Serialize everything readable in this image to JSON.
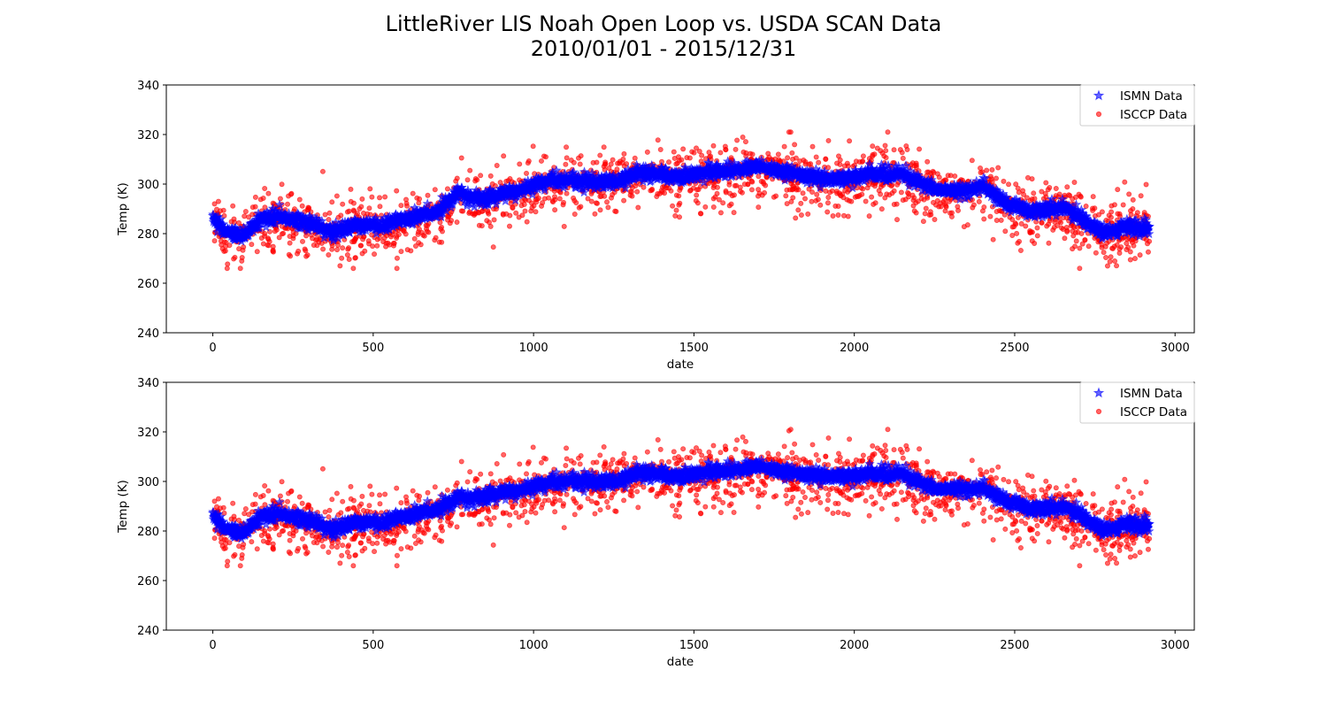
{
  "figure": {
    "title_line1": "LittleRiver LIS Noah Open Loop vs. USDA SCAN Data",
    "title_line2": "2010/01/01 - 2015/12/31"
  },
  "chart_data": [
    {
      "type": "scatter",
      "xlabel": "date",
      "ylabel": "Temp (K)",
      "xlim": [
        -145,
        3060
      ],
      "ylim": [
        240,
        340
      ],
      "xticks": [
        0,
        500,
        1000,
        1500,
        2000,
        2500,
        3000
      ],
      "yticks": [
        240,
        260,
        280,
        300,
        320,
        340
      ],
      "grid": false,
      "legend_position": "top-right",
      "series": [
        {
          "name": "ISMN Data",
          "marker": "star",
          "color": "#0000ff",
          "x_range": [
            0,
            2920
          ],
          "count": 2920,
          "trend_keypoints": {
            "x": [
              0,
              40,
              90,
              150,
              200,
              300,
              380,
              450,
              520,
              600,
              700,
              760,
              850,
              950,
              1050,
              1150,
              1250,
              1340,
              1450,
              1550,
              1650,
              1700,
              1800,
              1900,
              1950,
              2050,
              2150,
              2250,
              2330,
              2400,
              2480,
              2550,
              2650,
              2700,
              2780,
              2850,
              2920
            ],
            "y": [
              286,
              281,
              279,
              286,
              287,
              284,
              281,
              284,
              283,
              286,
              289,
              296,
              294,
              297,
              302,
              301,
              301,
              305,
              303,
              305,
              306,
              307,
              305,
              302,
              302,
              304,
              304,
              298,
              297,
              299,
              292,
              289,
              291,
              287,
              280,
              283,
              282
            ]
          }
        },
        {
          "name": "ISCCP Data",
          "marker": "circle",
          "color": "#ff0000",
          "x_range": [
            0,
            2920
          ],
          "count": 2000,
          "relation": "scattered around ISMN trend with spread about 6 K, extremes from 266 to 321"
        }
      ]
    },
    {
      "type": "scatter",
      "xlabel": "date",
      "ylabel": "Temp (K)",
      "xlim": [
        -145,
        3060
      ],
      "ylim": [
        240,
        340
      ],
      "xticks": [
        0,
        500,
        1000,
        1500,
        2000,
        2500,
        3000
      ],
      "yticks": [
        240,
        260,
        280,
        300,
        320,
        340
      ],
      "grid": false,
      "legend_position": "top-right",
      "series": [
        {
          "name": "ISMN Data",
          "marker": "star",
          "color": "#0000ff",
          "x_range": [
            0,
            2920
          ],
          "count": 2920,
          "trend_keypoints": {
            "x": [
              0,
              40,
              90,
              150,
              200,
              300,
              380,
              450,
              520,
              600,
              700,
              760,
              850,
              950,
              1050,
              1150,
              1250,
              1340,
              1450,
              1550,
              1650,
              1700,
              1800,
              1900,
              1950,
              2050,
              2150,
              2250,
              2330,
              2400,
              2480,
              2550,
              2650,
              2700,
              2780,
              2850,
              2920
            ],
            "y": [
              286,
              281,
              279,
              286,
              287,
              284,
              281,
              284,
              283,
              286,
              289,
              293,
              294,
              296,
              300,
              300,
              300,
              304,
              302,
              304,
              305,
              306,
              304,
              302,
              302,
              303,
              303,
              297,
              297,
              297,
              292,
              289,
              290,
              287,
              280,
              283,
              282
            ]
          }
        },
        {
          "name": "ISCCP Data",
          "marker": "circle",
          "color": "#ff0000",
          "x_range": [
            0,
            2920
          ],
          "count": 2000,
          "relation": "scattered around ISMN trend with spread about 6 K, extremes from 266 to 321"
        }
      ]
    }
  ]
}
